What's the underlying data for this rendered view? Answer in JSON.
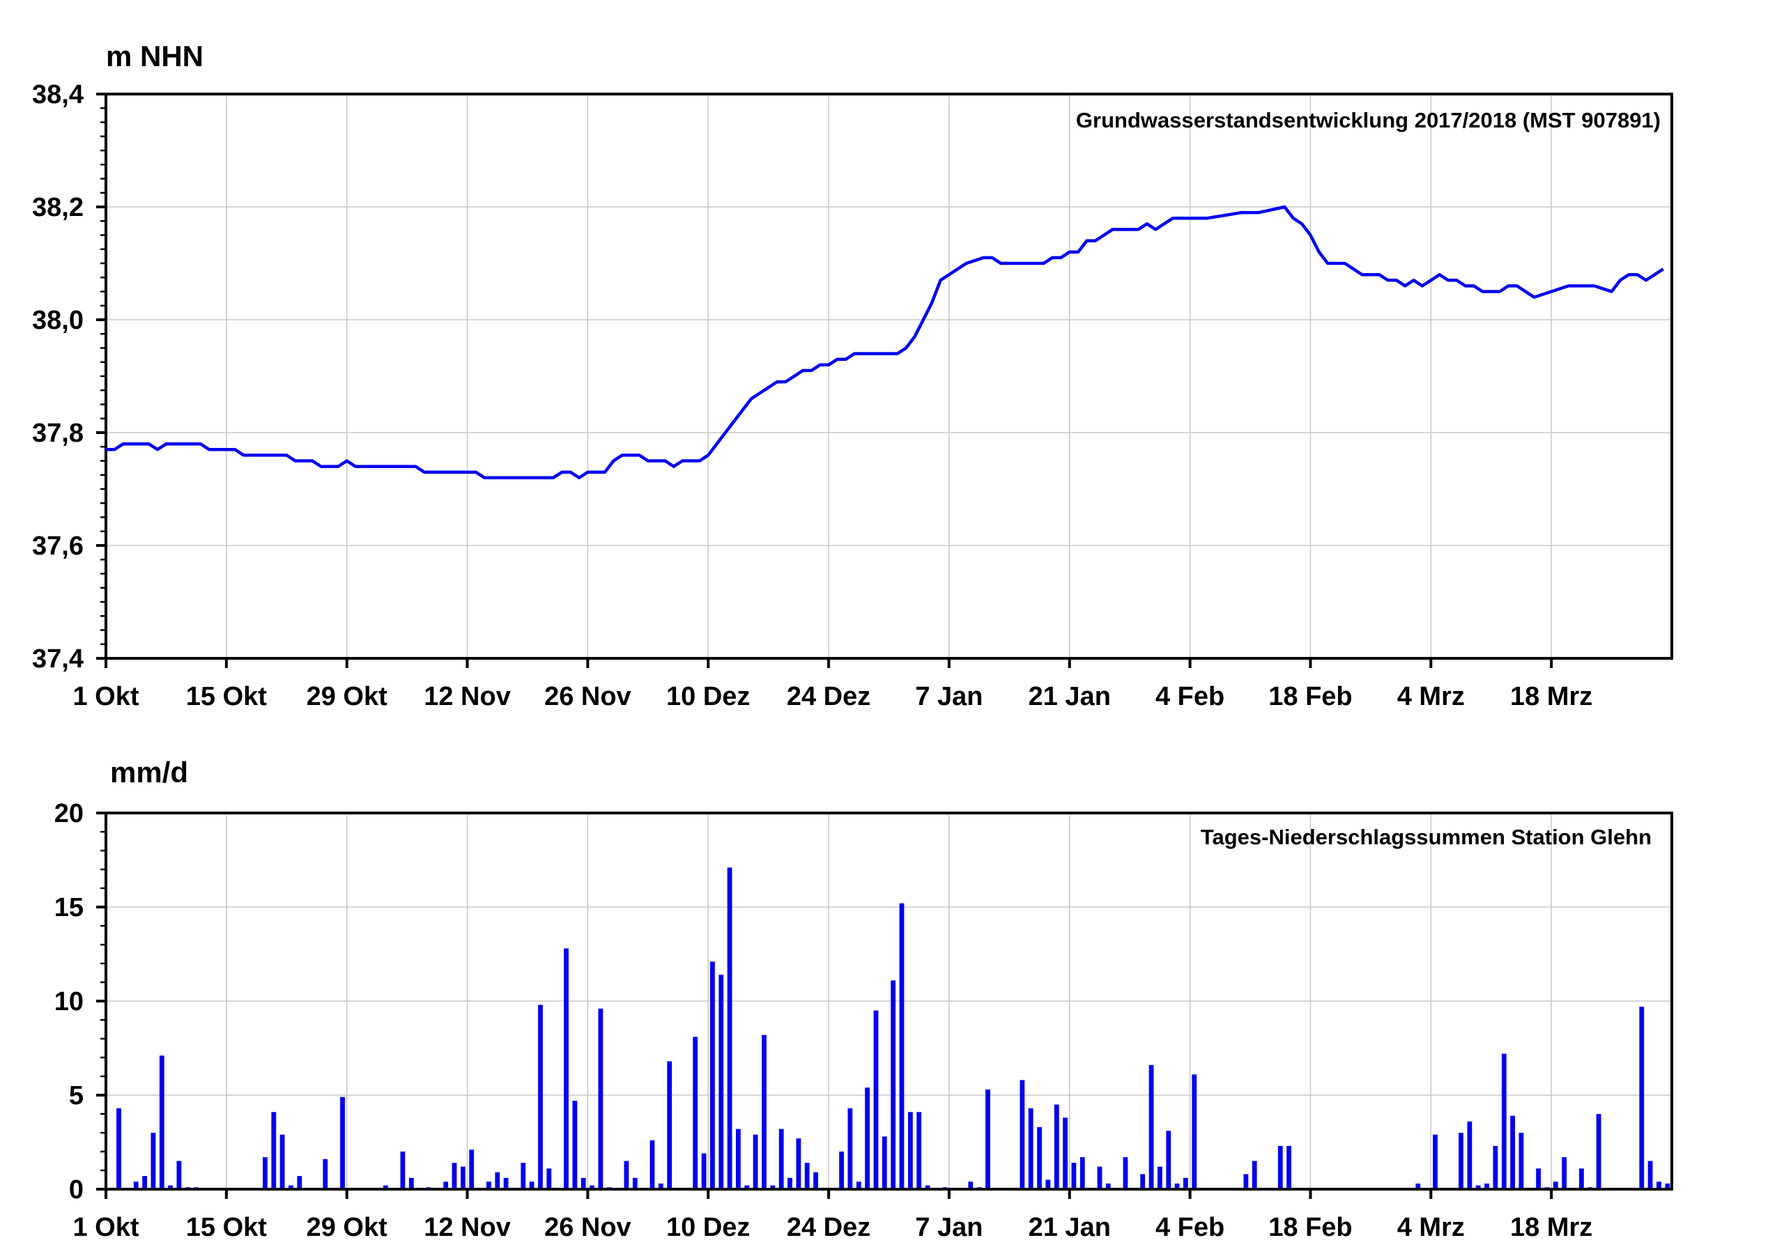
{
  "charts": {
    "top": {
      "unit": "m NHN",
      "title": "Grundwasserstandsentwicklung 2017/2018 (MST 907891)"
    },
    "bottom": {
      "unit": "mm/d",
      "title": "Tages-Niederschlagssummen Station Glehn"
    }
  },
  "colors": {
    "series": "#0000ee",
    "grid": "#c8c8c8",
    "axis": "#000000"
  },
  "chart_data": [
    {
      "type": "line",
      "title": "Grundwasserstandsentwicklung 2017/2018 (MST 907891)",
      "ylabel": "m NHN",
      "xlabel": "",
      "xlim": [
        "2017-10-01",
        "2018-03-31"
      ],
      "ylim": [
        37.4,
        38.4
      ],
      "y_ticks": [
        "37,4",
        "37,6",
        "37,8",
        "38,0",
        "38,2",
        "38,4"
      ],
      "x_ticks": [
        {
          "date": "2017-10-01",
          "label": "1 Okt"
        },
        {
          "date": "2017-10-15",
          "label": "15 Okt"
        },
        {
          "date": "2017-10-29",
          "label": "29 Okt"
        },
        {
          "date": "2017-11-12",
          "label": "12 Nov"
        },
        {
          "date": "2017-11-26",
          "label": "26 Nov"
        },
        {
          "date": "2017-12-10",
          "label": "10 Dez"
        },
        {
          "date": "2017-12-24",
          "label": "24 Dez"
        },
        {
          "date": "2018-01-07",
          "label": "7 Jan"
        },
        {
          "date": "2018-01-21",
          "label": "21 Jan"
        },
        {
          "date": "2018-02-04",
          "label": "4 Feb"
        },
        {
          "date": "2018-02-18",
          "label": "18 Feb"
        },
        {
          "date": "2018-03-04",
          "label": "4 Mrz"
        },
        {
          "date": "2018-03-18",
          "label": "18 Mrz"
        }
      ],
      "grid": true,
      "series": [
        {
          "x": [
            "2017-10-01",
            "2017-10-02",
            "2017-10-03",
            "2017-10-06",
            "2017-10-07",
            "2017-10-08",
            "2017-10-12",
            "2017-10-13",
            "2017-10-16",
            "2017-10-17",
            "2017-10-22",
            "2017-10-23",
            "2017-10-25",
            "2017-10-26",
            "2017-10-28",
            "2017-10-29",
            "2017-10-30",
            "2017-11-06",
            "2017-11-07",
            "2017-11-13",
            "2017-11-14",
            "2017-11-21",
            "2017-11-22",
            "2017-11-23",
            "2017-11-24",
            "2017-11-25",
            "2017-11-26",
            "2017-11-28",
            "2017-11-29",
            "2017-11-30",
            "2017-12-02",
            "2017-12-03",
            "2017-12-05",
            "2017-12-06",
            "2017-12-07",
            "2017-12-08",
            "2017-12-09",
            "2017-12-10",
            "2017-12-11",
            "2017-12-13",
            "2017-12-14",
            "2017-12-15",
            "2017-12-17",
            "2017-12-18",
            "2017-12-19",
            "2017-12-20",
            "2017-12-21",
            "2017-12-22",
            "2017-12-23",
            "2017-12-24",
            "2017-12-25",
            "2017-12-26",
            "2017-12-27",
            "2017-12-28",
            "2017-12-29",
            "2018-01-01",
            "2018-01-02",
            "2018-01-03",
            "2018-01-04",
            "2018-01-05",
            "2018-01-06",
            "2018-01-08",
            "2018-01-09",
            "2018-01-11",
            "2018-01-12",
            "2018-01-13",
            "2018-01-18",
            "2018-01-19",
            "2018-01-20",
            "2018-01-21",
            "2018-01-22",
            "2018-01-23",
            "2018-01-24",
            "2018-01-25",
            "2018-01-26",
            "2018-01-29",
            "2018-01-30",
            "2018-01-31",
            "2018-02-01",
            "2018-02-02",
            "2018-02-05",
            "2018-02-06",
            "2018-02-10",
            "2018-02-11",
            "2018-02-12",
            "2018-02-15",
            "2018-02-16",
            "2018-02-17",
            "2018-02-18",
            "2018-02-19",
            "2018-02-20",
            "2018-02-22",
            "2018-02-23",
            "2018-02-24",
            "2018-02-25",
            "2018-02-26",
            "2018-02-27",
            "2018-02-28",
            "2018-03-01",
            "2018-03-02",
            "2018-03-03",
            "2018-03-05",
            "2018-03-06",
            "2018-03-07",
            "2018-03-08",
            "2018-03-09",
            "2018-03-10",
            "2018-03-11",
            "2018-03-12",
            "2018-03-13",
            "2018-03-14",
            "2018-03-15",
            "2018-03-16",
            "2018-03-20",
            "2018-03-21",
            "2018-03-22",
            "2018-03-23",
            "2018-03-25",
            "2018-03-26",
            "2018-03-27",
            "2018-03-28",
            "2018-03-29",
            "2018-03-30",
            "2018-03-31"
          ],
          "y": [
            37.77,
            37.77,
            37.78,
            37.78,
            37.77,
            37.78,
            37.78,
            37.77,
            37.77,
            37.76,
            37.76,
            37.75,
            37.75,
            37.74,
            37.74,
            37.75,
            37.74,
            37.74,
            37.73,
            37.73,
            37.72,
            37.72,
            37.72,
            37.73,
            37.73,
            37.72,
            37.73,
            37.73,
            37.75,
            37.76,
            37.76,
            37.75,
            37.75,
            37.74,
            37.75,
            37.75,
            37.75,
            37.76,
            37.78,
            37.82,
            37.84,
            37.86,
            37.88,
            37.89,
            37.89,
            37.9,
            37.91,
            37.91,
            37.92,
            37.92,
            37.93,
            37.93,
            37.94,
            37.94,
            37.94,
            37.94,
            37.95,
            37.97,
            38.0,
            38.03,
            38.07,
            38.09,
            38.1,
            38.11,
            38.11,
            38.1,
            38.1,
            38.11,
            38.11,
            38.12,
            38.12,
            38.14,
            38.14,
            38.15,
            38.16,
            38.16,
            38.17,
            38.16,
            38.17,
            38.18,
            38.18,
            38.18,
            38.19,
            38.19,
            38.19,
            38.2,
            38.18,
            38.17,
            38.15,
            38.12,
            38.1,
            38.1,
            38.09,
            38.08,
            38.08,
            38.08,
            38.07,
            38.07,
            38.06,
            38.07,
            38.06,
            38.08,
            38.07,
            38.07,
            38.06,
            38.06,
            38.05,
            38.05,
            38.05,
            38.06,
            38.06,
            38.05,
            38.04,
            38.06,
            38.06,
            38.06,
            38.06,
            38.05,
            38.07,
            38.08,
            38.08,
            38.07,
            38.08,
            38.09
          ]
        }
      ]
    },
    {
      "type": "bar",
      "title": "Tages-Niederschlagssummen Station Glehn",
      "ylabel": "mm/d",
      "xlabel": "",
      "xlim": [
        "2017-10-01",
        "2018-03-31"
      ],
      "ylim": [
        0,
        20
      ],
      "y_ticks": [
        "0",
        "5",
        "10",
        "15",
        "20"
      ],
      "x_ticks": [
        {
          "date": "2017-10-01",
          "label": "1 Okt"
        },
        {
          "date": "2017-10-15",
          "label": "15 Okt"
        },
        {
          "date": "2017-10-29",
          "label": "29 Okt"
        },
        {
          "date": "2017-11-12",
          "label": "12 Nov"
        },
        {
          "date": "2017-11-26",
          "label": "26 Nov"
        },
        {
          "date": "2017-12-10",
          "label": "10 Dez"
        },
        {
          "date": "2017-12-24",
          "label": "24 Dez"
        },
        {
          "date": "2018-01-07",
          "label": "7 Jan"
        },
        {
          "date": "2018-01-21",
          "label": "21 Jan"
        },
        {
          "date": "2018-02-04",
          "label": "4 Feb"
        },
        {
          "date": "2018-02-18",
          "label": "18 Feb"
        },
        {
          "date": "2018-03-04",
          "label": "4 Mrz"
        },
        {
          "date": "2018-03-18",
          "label": "18 Mrz"
        }
      ],
      "grid": true,
      "series": [
        {
          "x": [
            "2017-10-02",
            "2017-10-04",
            "2017-10-05",
            "2017-10-06",
            "2017-10-07",
            "2017-10-08",
            "2017-10-09",
            "2017-10-10",
            "2017-10-11",
            "2017-10-19",
            "2017-10-20",
            "2017-10-21",
            "2017-10-22",
            "2017-10-23",
            "2017-10-26",
            "2017-10-28",
            "2017-11-02",
            "2017-11-04",
            "2017-11-05",
            "2017-11-07",
            "2017-11-09",
            "2017-11-10",
            "2017-11-11",
            "2017-11-12",
            "2017-11-14",
            "2017-11-15",
            "2017-11-16",
            "2017-11-18",
            "2017-11-19",
            "2017-11-20",
            "2017-11-21",
            "2017-11-23",
            "2017-11-24",
            "2017-11-25",
            "2017-11-26",
            "2017-11-27",
            "2017-11-28",
            "2017-11-30",
            "2017-12-01",
            "2017-12-03",
            "2017-12-04",
            "2017-12-05",
            "2017-12-08",
            "2017-12-09",
            "2017-12-10",
            "2017-12-11",
            "2017-12-12",
            "2017-12-13",
            "2017-12-14",
            "2017-12-15",
            "2017-12-16",
            "2017-12-17",
            "2017-12-18",
            "2017-12-19",
            "2017-12-20",
            "2017-12-21",
            "2017-12-22",
            "2017-12-25",
            "2017-12-26",
            "2017-12-27",
            "2017-12-28",
            "2017-12-29",
            "2017-12-30",
            "2017-12-31",
            "2018-01-01",
            "2018-01-02",
            "2018-01-03",
            "2018-01-04",
            "2018-01-06",
            "2018-01-09",
            "2018-01-10",
            "2018-01-11",
            "2018-01-15",
            "2018-01-16",
            "2018-01-17",
            "2018-01-18",
            "2018-01-19",
            "2018-01-20",
            "2018-01-21",
            "2018-01-22",
            "2018-01-24",
            "2018-01-25",
            "2018-01-27",
            "2018-01-29",
            "2018-01-30",
            "2018-01-31",
            "2018-02-01",
            "2018-02-02",
            "2018-02-03",
            "2018-02-04",
            "2018-02-10",
            "2018-02-11",
            "2018-02-14",
            "2018-02-15",
            "2018-03-02",
            "2018-03-04",
            "2018-03-07",
            "2018-03-08",
            "2018-03-09",
            "2018-03-10",
            "2018-03-11",
            "2018-03-12",
            "2018-03-13",
            "2018-03-14",
            "2018-03-16",
            "2018-03-17",
            "2018-03-18",
            "2018-03-19",
            "2018-03-21",
            "2018-03-22",
            "2018-03-23",
            "2018-03-28",
            "2018-03-29",
            "2018-03-30",
            "2018-03-31"
          ],
          "values": [
            4.3,
            0.4,
            0.7,
            3.0,
            7.1,
            0.2,
            1.5,
            0.1,
            0.1,
            1.7,
            4.1,
            2.9,
            0.2,
            0.7,
            1.6,
            4.9,
            0.2,
            2.0,
            0.6,
            0.1,
            0.4,
            1.4,
            1.2,
            2.1,
            0.4,
            0.9,
            0.6,
            1.4,
            0.4,
            9.8,
            1.1,
            12.8,
            4.7,
            0.6,
            0.2,
            9.6,
            0.1,
            1.5,
            0.6,
            2.6,
            0.3,
            6.8,
            8.1,
            1.9,
            12.1,
            11.4,
            17.1,
            3.2,
            0.2,
            2.9,
            8.2,
            0.2,
            3.2,
            0.6,
            2.7,
            1.4,
            0.9,
            2.0,
            4.3,
            0.4,
            5.4,
            9.5,
            2.8,
            11.1,
            15.2,
            4.1,
            4.1,
            0.2,
            0.1,
            0.4,
            0.1,
            5.3,
            5.8,
            4.3,
            3.3,
            0.5,
            4.5,
            3.8,
            1.4,
            1.7,
            1.2,
            0.3,
            1.7,
            0.8,
            6.6,
            1.2,
            3.1,
            0.3,
            0.6,
            6.1,
            0.8,
            1.5,
            2.3,
            2.3,
            0.3,
            2.9,
            3.0,
            3.6,
            0.2,
            0.3,
            2.3,
            7.2,
            3.9,
            3.0,
            1.1,
            0.1,
            0.4,
            1.7,
            1.1,
            0.1,
            4.0,
            9.7,
            1.5,
            0.4,
            0.3
          ]
        }
      ]
    }
  ]
}
